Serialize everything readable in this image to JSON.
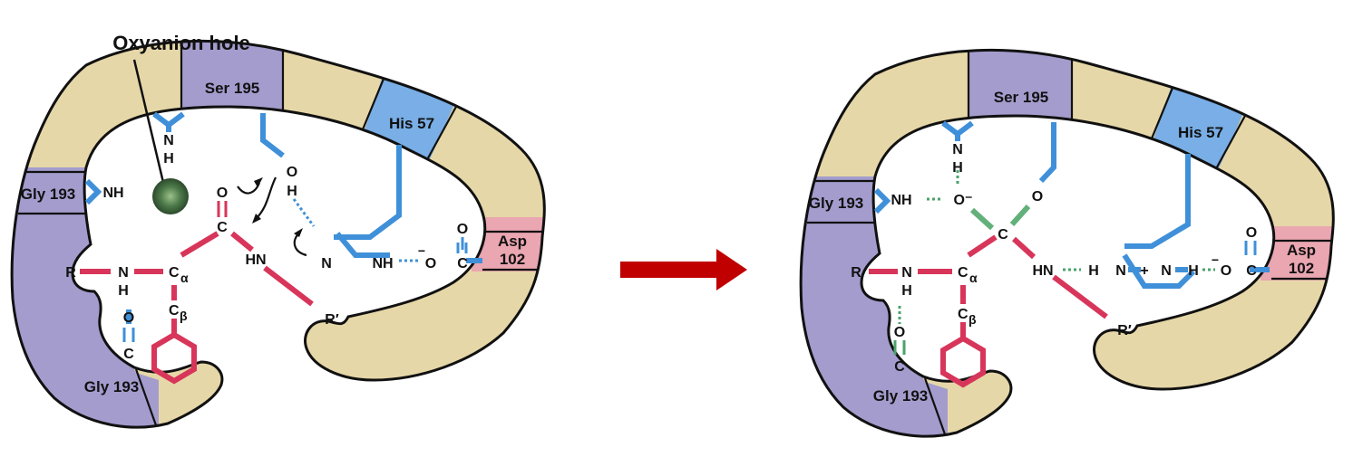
{
  "title": "Oxyanion hole",
  "colors": {
    "enzyme_body": "#e6d7a8",
    "outline": "#111111",
    "gly": "#a39ccd",
    "ser": "#a39ccd",
    "his": "#79aee6",
    "asp": "#eaa6b1",
    "substrate_bond": "#d8355a",
    "enzyme_bond": "#3f90d9",
    "new_bond": "#62b07a",
    "hbond": "#3f90d9",
    "hbond_green": "#4aa36c",
    "arrow": "#c00000",
    "hole": "#3f6b3f"
  },
  "residues": {
    "ser": "Ser 195",
    "his": "His 57",
    "gly_top": "Gly 193",
    "gly_bottom": "Gly 193",
    "asp_line1": "Asp",
    "asp_line2": "102"
  },
  "atoms": {
    "N": "N",
    "H": "H",
    "NH": "NH",
    "HN": "HN",
    "O": "O",
    "C": "C",
    "R": "R",
    "R_prime": "R′",
    "C_alpha_base": "C",
    "C_alpha_sub": "α",
    "C_beta_base": "C",
    "C_beta_sub": "β",
    "O_minus": "O⁻",
    "minus": "−",
    "plus": "+"
  }
}
